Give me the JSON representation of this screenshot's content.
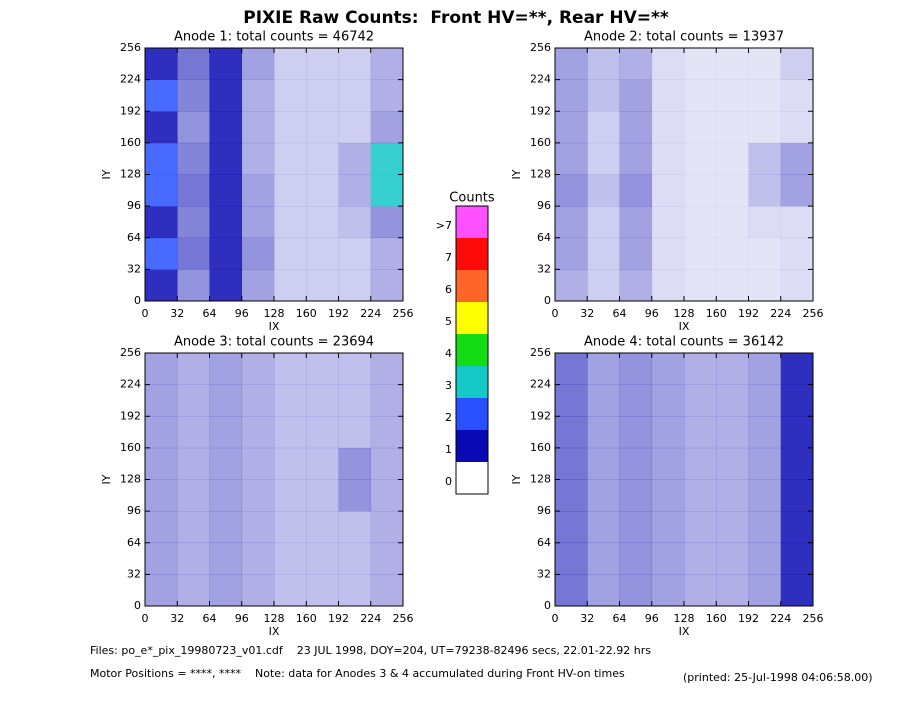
{
  "title": "PIXIE Raw Counts:  Front HV=**, Rear HV=**",
  "chart_data": [
    {
      "type": "heatmap",
      "title": "Anode 1: total counts = 46742",
      "x_label": "IX",
      "y_label": "IY",
      "xlim": [
        0,
        256
      ],
      "ylim": [
        0,
        256
      ],
      "xticks": [
        0,
        32,
        64,
        96,
        128,
        160,
        192,
        224,
        256
      ],
      "yticks": [
        0,
        32,
        64,
        96,
        128,
        160,
        192,
        224,
        256
      ],
      "z": [
        [
          1.5,
          0.6,
          1.2,
          0.5,
          0.2,
          0.2,
          0.2,
          0.4
        ],
        [
          2,
          0.8,
          1.5,
          0.6,
          0.2,
          0.2,
          0.2,
          0.4
        ],
        [
          1.8,
          0.7,
          1.4,
          0.5,
          0.2,
          0.2,
          0.3,
          0.6
        ],
        [
          2.2,
          0.8,
          1.6,
          0.5,
          0.2,
          0.2,
          0.4,
          3
        ],
        [
          2,
          0.7,
          1.5,
          0.4,
          0.2,
          0.2,
          0.4,
          3
        ],
        [
          1.8,
          0.6,
          1.4,
          0.4,
          0.2,
          0.2,
          0.2,
          0.5
        ],
        [
          2,
          0.7,
          1.4,
          0.4,
          0.2,
          0.2,
          0.2,
          0.4
        ],
        [
          1.8,
          0.8,
          1.2,
          0.5,
          0.2,
          0.2,
          0.2,
          0.4
        ]
      ]
    },
    {
      "type": "heatmap",
      "title": "Anode 2: total counts = 13937",
      "x_label": "IX",
      "y_label": "IY",
      "xlim": [
        0,
        256
      ],
      "ylim": [
        0,
        256
      ],
      "xticks": [
        0,
        32,
        64,
        96,
        128,
        160,
        192,
        224,
        256
      ],
      "yticks": [
        0,
        32,
        64,
        96,
        128,
        160,
        192,
        224,
        256
      ],
      "z": [
        [
          0.4,
          0.2,
          0.4,
          0.1,
          0.05,
          0.05,
          0.05,
          0.1
        ],
        [
          0.5,
          0.2,
          0.5,
          0.1,
          0.05,
          0.05,
          0.05,
          0.1
        ],
        [
          0.5,
          0.2,
          0.5,
          0.1,
          0.05,
          0.05,
          0.1,
          0.1
        ],
        [
          0.6,
          0.3,
          0.6,
          0.1,
          0.05,
          0.05,
          0.3,
          0.5
        ],
        [
          0.5,
          0.2,
          0.5,
          0.1,
          0.05,
          0.05,
          0.3,
          0.5
        ],
        [
          0.5,
          0.2,
          0.5,
          0.1,
          0.05,
          0.05,
          0.05,
          0.1
        ],
        [
          0.5,
          0.3,
          0.5,
          0.1,
          0.05,
          0.05,
          0.05,
          0.1
        ],
        [
          0.5,
          0.3,
          0.4,
          0.1,
          0.05,
          0.05,
          0.05,
          0.2
        ]
      ]
    },
    {
      "type": "heatmap",
      "title": "Anode 3: total counts = 23694",
      "x_label": "IX",
      "y_label": "IY",
      "xlim": [
        0,
        256
      ],
      "ylim": [
        0,
        256
      ],
      "xticks": [
        0,
        32,
        64,
        96,
        128,
        160,
        192,
        224,
        256
      ],
      "yticks": [
        0,
        32,
        64,
        96,
        128,
        160,
        192,
        224,
        256
      ],
      "z": [
        [
          0.5,
          0.4,
          0.5,
          0.4,
          0.3,
          0.3,
          0.3,
          0.4
        ],
        [
          0.5,
          0.4,
          0.5,
          0.4,
          0.3,
          0.3,
          0.3,
          0.4
        ],
        [
          0.5,
          0.4,
          0.5,
          0.4,
          0.3,
          0.3,
          0.3,
          0.4
        ],
        [
          0.5,
          0.4,
          0.5,
          0.4,
          0.3,
          0.3,
          0.6,
          0.4
        ],
        [
          0.5,
          0.4,
          0.5,
          0.4,
          0.3,
          0.3,
          0.6,
          0.4
        ],
        [
          0.5,
          0.4,
          0.5,
          0.4,
          0.3,
          0.3,
          0.3,
          0.4
        ],
        [
          0.5,
          0.4,
          0.5,
          0.4,
          0.3,
          0.3,
          0.3,
          0.4
        ],
        [
          0.5,
          0.4,
          0.5,
          0.4,
          0.3,
          0.3,
          0.3,
          0.4
        ]
      ]
    },
    {
      "type": "heatmap",
      "title": "Anode 4: total counts = 36142",
      "x_label": "IX",
      "y_label": "IY",
      "xlim": [
        0,
        256
      ],
      "ylim": [
        0,
        256
      ],
      "xticks": [
        0,
        32,
        64,
        96,
        128,
        160,
        192,
        224,
        256
      ],
      "yticks": [
        0,
        32,
        64,
        96,
        128,
        160,
        192,
        224,
        256
      ],
      "z": [
        [
          0.8,
          0.5,
          0.6,
          0.5,
          0.4,
          0.4,
          0.5,
          1.2
        ],
        [
          0.8,
          0.5,
          0.6,
          0.5,
          0.4,
          0.4,
          0.5,
          1.3
        ],
        [
          0.8,
          0.5,
          0.6,
          0.5,
          0.4,
          0.4,
          0.5,
          1.3
        ],
        [
          0.8,
          0.5,
          0.6,
          0.5,
          0.4,
          0.4,
          0.5,
          1.2
        ],
        [
          0.8,
          0.5,
          0.6,
          0.5,
          0.4,
          0.4,
          0.5,
          1.3
        ],
        [
          0.8,
          0.5,
          0.6,
          0.5,
          0.4,
          0.4,
          0.5,
          1.3
        ],
        [
          0.8,
          0.5,
          0.6,
          0.5,
          0.4,
          0.4,
          0.5,
          1.4
        ],
        [
          0.8,
          0.5,
          0.6,
          0.5,
          0.4,
          0.4,
          0.5,
          1.2
        ]
      ]
    }
  ],
  "colorbar": {
    "title": "Counts",
    "levels": [
      {
        "label": "0",
        "color": "#ffffff"
      },
      {
        "label": "1",
        "color": "#0a0ab4"
      },
      {
        "label": "2",
        "color": "#2850ff"
      },
      {
        "label": "3",
        "color": "#14c8c8"
      },
      {
        "label": "4",
        "color": "#14dc14"
      },
      {
        "label": "5",
        "color": "#ffff00"
      },
      {
        "label": "6",
        "color": "#ff6428"
      },
      {
        "label": "7",
        "color": "#ff0a0a"
      },
      {
        "label": ">7",
        "color": "#ff50ff"
      }
    ]
  },
  "footer": {
    "files": "Files: po_e*_pix_19980723_v01.cdf    23 JUL 1998, DOY=204, UT=79238-82496 secs, 22.01-22.92 hrs",
    "motor": "Motor Positions = ****, ****    Note: data for Anodes 3 & 4 accumulated during Front HV-on times",
    "printed": "(printed: 25-Jul-1998 04:06:58.00)"
  }
}
